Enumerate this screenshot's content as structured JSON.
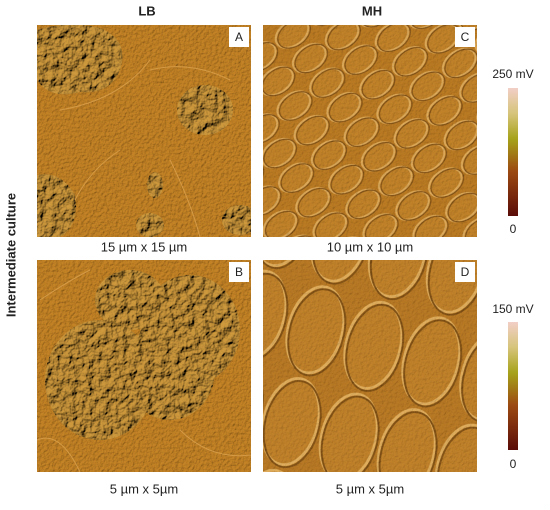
{
  "header": {
    "columns": [
      "LB",
      "MH"
    ]
  },
  "row_label": "Intermediate culture",
  "panels": [
    {
      "letter": "A",
      "scale": "15 µm x 15 µm"
    },
    {
      "letter": "B",
      "scale": "5 µm x 5µm"
    },
    {
      "letter": "C",
      "scale": "10 µm x 10 µm"
    },
    {
      "letter": "D",
      "scale": "5 µm x 5µm"
    }
  ],
  "colorbars": [
    {
      "max": "250 mV",
      "min": "0"
    },
    {
      "max": "150 mV",
      "min": "0"
    }
  ]
}
